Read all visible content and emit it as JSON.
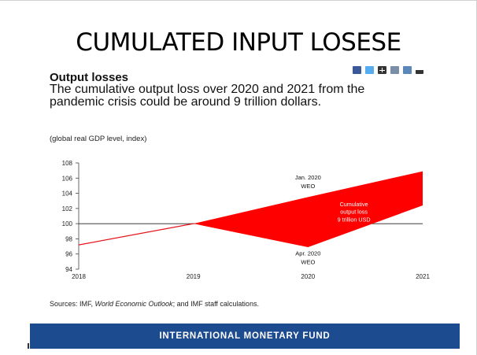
{
  "slide": {
    "title": "CUMULATED INPUT LOSESE"
  },
  "share_icons": [
    "facebook-icon",
    "twitter-icon",
    "plus-icon",
    "linkedin-icon",
    "email-icon",
    "more-icon"
  ],
  "chart_header": {
    "title": "Output losses",
    "subtitle": "The cumulative output loss over 2020 and 2021 from the pandemic crisis could be around 9 trillion dollars.",
    "unit_note": "(global real GDP level, index)"
  },
  "chart_data": {
    "type": "line",
    "title": "Output losses",
    "ylabel": "global real GDP level, index",
    "xlim": [
      2018,
      2021
    ],
    "ylim": [
      94,
      108
    ],
    "x_ticks": [
      "2018",
      "2019",
      "2020",
      "2021"
    ],
    "y_ticks": [
      "108",
      "106",
      "104",
      "102",
      "100",
      "98",
      "96",
      "94"
    ],
    "baseline": 100,
    "series": [
      {
        "name": "Jan. 2020 WEO",
        "x": [
          2018,
          2019,
          2020,
          2021
        ],
        "values": [
          97.2,
          100,
          103.5,
          106.9
        ]
      },
      {
        "name": "Apr. 2020 WEO",
        "x": [
          2018,
          2019,
          2020,
          2021
        ],
        "values": [
          97.2,
          100,
          96.9,
          102.4
        ]
      }
    ],
    "fill_between": {
      "label": "Cumulative output loss 9 trillion USD",
      "color": "#ff0000"
    },
    "line_color": "#e8141c",
    "annotations": {
      "jan": [
        "Jan. 2020",
        "WEO"
      ],
      "apr": [
        "Apr. 2020",
        "WEO"
      ],
      "area": [
        "Cumulative",
        "output loss",
        "9 trillion USD"
      ]
    }
  },
  "source": {
    "prefix": "Sources: IMF, ",
    "italic": "World Economic Outlook",
    "suffix": "; and IMF staff calculations."
  },
  "footer": {
    "label": "INTERNATIONAL MONETARY FUND"
  }
}
